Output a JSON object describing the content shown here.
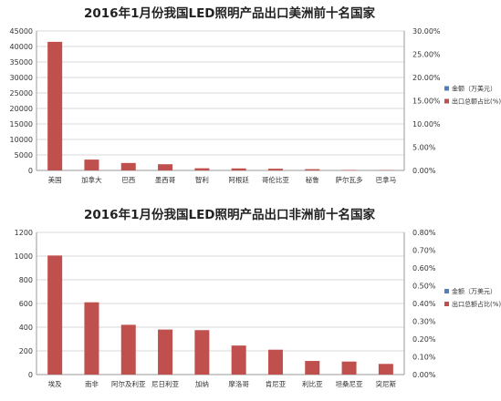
{
  "chart_data": [
    {
      "type": "bar",
      "title": "2016年1月份我国LED照明产品出口美洲前十名国家",
      "categories": [
        "美国",
        "加拿大",
        "巴西",
        "墨西哥",
        "智利",
        "阿根廷",
        "哥伦比亚",
        "秘鲁",
        "萨尔瓦多",
        "巴拿马"
      ],
      "series": [
        {
          "name": "金额（万美元）",
          "axis": "left",
          "values": [
            41500,
            3500,
            2400,
            2000,
            700,
            650,
            550,
            400,
            150,
            100
          ]
        },
        {
          "name": "出口总额占比(%)",
          "axis": "right",
          "values": [
            0,
            0,
            0,
            0,
            0,
            0,
            0,
            0,
            0,
            0
          ]
        }
      ],
      "y_left": {
        "min": 0,
        "max": 45000,
        "ticks": [
          "0",
          "5000",
          "10000",
          "15000",
          "20000",
          "25000",
          "30000",
          "35000",
          "40000",
          "45000"
        ]
      },
      "y_right": {
        "min": 0,
        "max": 30,
        "ticks": [
          "0.00%",
          "5.00%",
          "10.00%",
          "15.00%",
          "20.00%",
          "25.00%",
          "30.00%"
        ]
      },
      "grid": true,
      "legend_position": "right",
      "colors": {
        "amount": "#c0504d",
        "share": "#4f81bd"
      }
    },
    {
      "type": "bar",
      "title": "2016年1月份我国LED照明产品出口非洲前十名国家",
      "categories": [
        "埃及",
        "南非",
        "阿尔及利亚",
        "尼日利亚",
        "加纳",
        "摩洛哥",
        "肯尼亚",
        "利比亚",
        "坦桑尼亚",
        "突尼斯"
      ],
      "series": [
        {
          "name": "金额（万美元）",
          "axis": "left",
          "values": [
            1005,
            610,
            420,
            380,
            375,
            245,
            210,
            115,
            110,
            90
          ]
        },
        {
          "name": "出口总额占比(%)",
          "axis": "right",
          "values": [
            0,
            0,
            0,
            0,
            0,
            0,
            0,
            0,
            0,
            0
          ]
        }
      ],
      "y_left": {
        "min": 0,
        "max": 1200,
        "ticks": [
          "0",
          "200",
          "400",
          "600",
          "800",
          "1000",
          "1200"
        ]
      },
      "y_right": {
        "min": 0,
        "max": 0.8,
        "ticks": [
          "0.00%",
          "0.10%",
          "0.20%",
          "0.30%",
          "0.40%",
          "0.50%",
          "0.60%",
          "0.70%",
          "0.80%"
        ]
      },
      "grid": true,
      "legend_position": "right",
      "colors": {
        "amount": "#c0504d",
        "share": "#4f81bd"
      }
    }
  ]
}
